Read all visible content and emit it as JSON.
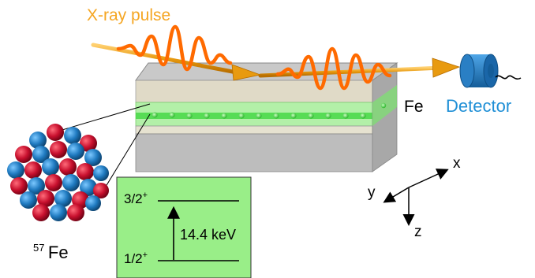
{
  "labels": {
    "xray_pulse": "X-ray pulse",
    "fe_layer": "Fe",
    "detector": "Detector",
    "axis_x": "x",
    "axis_y": "y",
    "axis_z": "z",
    "isotope_mass": "57",
    "isotope_symbol": "Fe",
    "upper_level": "3/2",
    "upper_level_parity": "+",
    "lower_level": "1/2",
    "lower_level_parity": "+",
    "transition_energy": "14.4 keV"
  },
  "colors": {
    "xray_label": "#f5a623",
    "wave": "#ff6a00",
    "beam": "#f0a020",
    "detector_label": "#1f8fd6",
    "detector_body": "#2a7fc4",
    "level_box": "#99ee88",
    "fe_layer": "#5ee05a",
    "nucleus_red": "#c8102e",
    "nucleus_blue": "#1f7ac0"
  },
  "icons": [
    "detector-icon",
    "nucleus-icon",
    "axis-icon"
  ]
}
